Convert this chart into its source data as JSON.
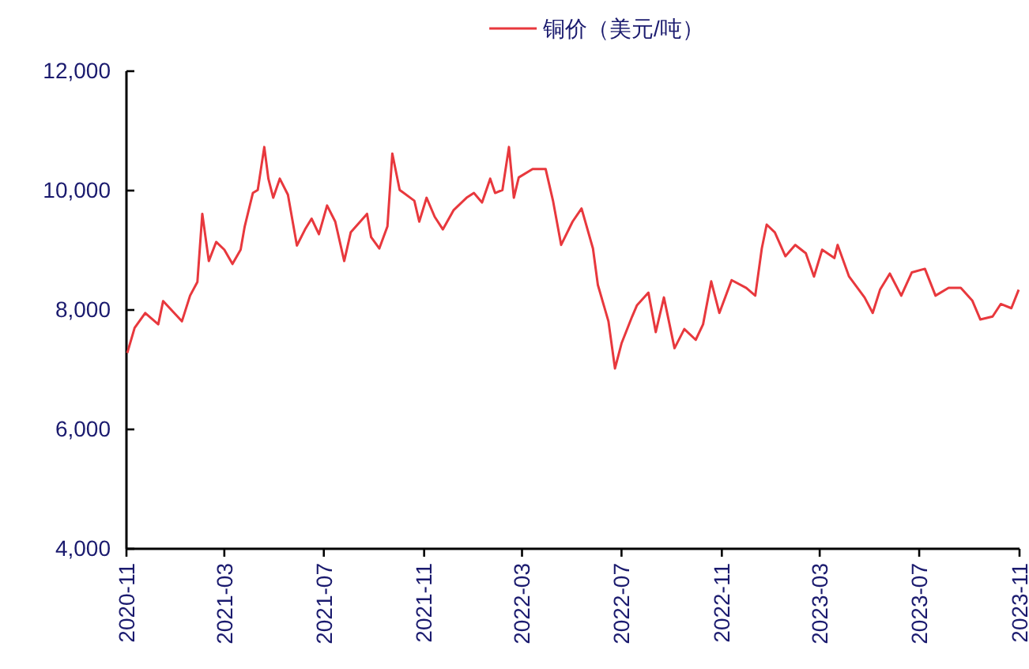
{
  "chart_data": {
    "type": "line",
    "legend": "top",
    "grid": false,
    "marker": "none",
    "line_style": "solid",
    "xlim": [
      "2020-11",
      "2023-11"
    ],
    "xticks": [
      "2020-11",
      "2021-03",
      "2021-07",
      "2021-11",
      "2022-03",
      "2022-07",
      "2022-11",
      "2023-03",
      "2023-07",
      "2023-11"
    ],
    "ylim": [
      4000,
      12000
    ],
    "yticks": [
      {
        "value": 4000,
        "label": "4,000"
      },
      {
        "value": 6000,
        "label": "6,000"
      },
      {
        "value": 8000,
        "label": "8,000"
      },
      {
        "value": 10000,
        "label": "10,000"
      },
      {
        "value": 12000,
        "label": "12,000"
      }
    ],
    "x": [
      "2020-11-02",
      "2020-11-11",
      "2020-11-24",
      "2020-12-10",
      "2020-12-16",
      "2021-01-08",
      "2021-01-18",
      "2021-01-27",
      "2021-02-02",
      "2021-02-10",
      "2021-02-19",
      "2021-03-01",
      "2021-03-11",
      "2021-03-21",
      "2021-03-26",
      "2021-04-05",
      "2021-04-11",
      "2021-04-19",
      "2021-04-24",
      "2021-04-30",
      "2021-05-08",
      "2021-05-18",
      "2021-05-29",
      "2021-06-08",
      "2021-06-16",
      "2021-06-25",
      "2021-07-05",
      "2021-07-15",
      "2021-07-26",
      "2021-08-03",
      "2021-08-23",
      "2021-08-28",
      "2021-09-07",
      "2021-09-17",
      "2021-09-23",
      "2021-10-02",
      "2021-10-20",
      "2021-10-26",
      "2021-11-04",
      "2021-11-14",
      "2021-11-24",
      "2021-12-07",
      "2021-12-23",
      "2022-01-01",
      "2022-01-11",
      "2022-01-21",
      "2022-01-27",
      "2022-02-05",
      "2022-02-13",
      "2022-02-19",
      "2022-02-25",
      "2022-03-14",
      "2022-03-30",
      "2022-04-08",
      "2022-04-18",
      "2022-05-02",
      "2022-05-13",
      "2022-05-27",
      "2022-06-02",
      "2022-06-15",
      "2022-06-23",
      "2022-07-01",
      "2022-07-14",
      "2022-07-20",
      "2022-08-03",
      "2022-08-12",
      "2022-08-22",
      "2022-09-04",
      "2022-09-16",
      "2022-09-30",
      "2022-10-09",
      "2022-10-19",
      "2022-10-29",
      "2022-11-13",
      "2022-12-01",
      "2022-12-12",
      "2022-12-20",
      "2022-12-26",
      "2023-01-05",
      "2023-01-18",
      "2023-01-30",
      "2023-02-12",
      "2023-02-22",
      "2023-03-04",
      "2023-03-19",
      "2023-03-23",
      "2023-04-06",
      "2023-04-25",
      "2023-05-05",
      "2023-05-14",
      "2023-05-26",
      "2023-06-09",
      "2023-06-22",
      "2023-07-08",
      "2023-07-21",
      "2023-08-06",
      "2023-08-21",
      "2023-09-04",
      "2023-09-14",
      "2023-09-29",
      "2023-10-09",
      "2023-10-22",
      "2023-10-31"
    ],
    "series": [
      {
        "name": "铜价（美元/吨）",
        "color": "#e8383d",
        "values": [
          7280,
          7700,
          7950,
          7760,
          8150,
          7810,
          8240,
          8470,
          9610,
          8820,
          9140,
          9010,
          8770,
          9010,
          9400,
          9960,
          10010,
          10730,
          10200,
          9880,
          10200,
          9930,
          9080,
          9350,
          9530,
          9270,
          9750,
          9480,
          8820,
          9300,
          9610,
          9220,
          9030,
          9400,
          10620,
          10010,
          9830,
          9480,
          9880,
          9560,
          9350,
          9670,
          9880,
          9960,
          9800,
          10200,
          9960,
          10010,
          10730,
          9880,
          10220,
          10360,
          10360,
          9830,
          9090,
          9480,
          9700,
          9030,
          8420,
          7810,
          7020,
          7440,
          7890,
          8080,
          8290,
          7630,
          8210,
          7360,
          7680,
          7500,
          7760,
          8480,
          7950,
          8500,
          8370,
          8240,
          9030,
          9430,
          9300,
          8900,
          9090,
          8950,
          8560,
          9010,
          8870,
          9090,
          8560,
          8210,
          7950,
          8340,
          8610,
          8240,
          8630,
          8690,
          8240,
          8370,
          8370,
          8160,
          7840,
          7890,
          8100,
          8030,
          8340
        ]
      }
    ]
  }
}
